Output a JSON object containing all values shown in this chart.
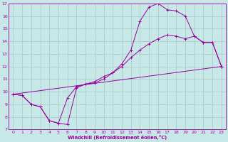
{
  "xlabel": "Windchill (Refroidissement éolien,°C)",
  "xlim": [
    -0.5,
    23.5
  ],
  "ylim": [
    7,
    17
  ],
  "xticks": [
    0,
    1,
    2,
    3,
    4,
    5,
    6,
    7,
    8,
    9,
    10,
    11,
    12,
    13,
    14,
    15,
    16,
    17,
    18,
    19,
    20,
    21,
    22,
    23
  ],
  "yticks": [
    7,
    8,
    9,
    10,
    11,
    12,
    13,
    14,
    15,
    16,
    17
  ],
  "bg_color": "#c8e8e8",
  "line_color": "#990099",
  "grid_color": "#aacccc",
  "lines": [
    {
      "x": [
        0,
        1,
        2,
        3,
        4,
        5,
        6,
        7,
        8,
        9,
        10,
        11,
        12,
        13,
        14,
        15,
        16,
        17,
        18,
        19,
        20,
        21,
        22,
        23
      ],
      "y": [
        9.8,
        9.7,
        9.0,
        8.8,
        7.7,
        7.5,
        7.4,
        10.3,
        10.6,
        10.7,
        11.0,
        11.5,
        12.2,
        13.3,
        15.6,
        16.7,
        17.0,
        16.5,
        16.4,
        16.0,
        14.4,
        13.9,
        13.9,
        12.0
      ]
    },
    {
      "x": [
        0,
        1,
        2,
        3,
        4,
        5,
        6,
        7,
        8,
        9,
        10,
        11,
        12,
        13,
        14,
        15,
        16,
        17,
        18,
        19,
        20,
        21,
        22,
        23
      ],
      "y": [
        9.8,
        9.7,
        9.0,
        8.8,
        7.7,
        7.5,
        9.5,
        10.4,
        10.6,
        10.8,
        11.2,
        11.5,
        12.0,
        12.7,
        13.3,
        13.8,
        14.2,
        14.5,
        14.4,
        14.2,
        14.4,
        13.9,
        13.9,
        12.0
      ]
    },
    {
      "x": [
        0,
        23
      ],
      "y": [
        9.8,
        12.0
      ]
    }
  ]
}
